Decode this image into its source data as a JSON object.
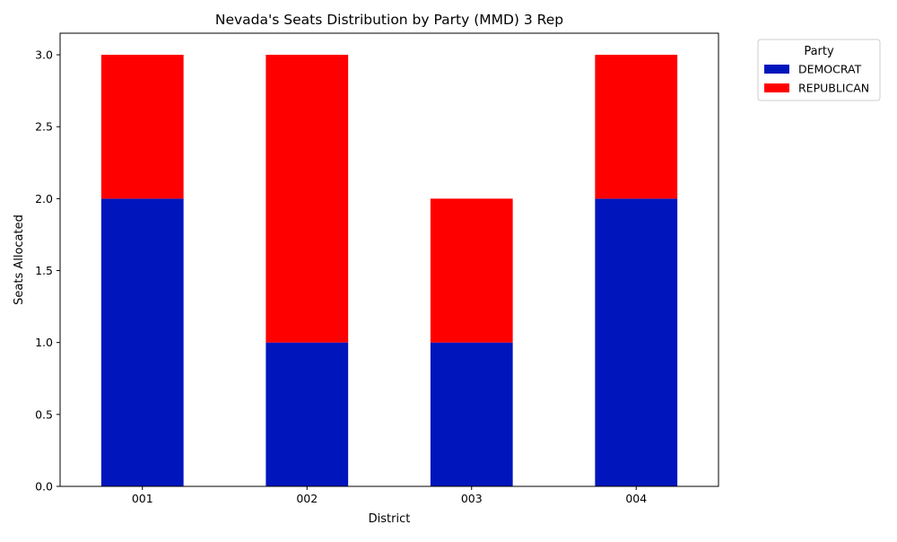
{
  "chart_data": {
    "type": "bar",
    "stacked": true,
    "title": "Nevada's Seats Distribution by Party (MMD) 3 Rep",
    "xlabel": "District",
    "ylabel": "Seats Allocated",
    "categories": [
      "001",
      "002",
      "003",
      "004"
    ],
    "series": [
      {
        "name": "DEMOCRAT",
        "color": "#0015BC",
        "values": [
          2,
          1,
          1,
          2
        ]
      },
      {
        "name": "REPUBLICAN",
        "color": "#FF0000",
        "values": [
          1,
          2,
          1,
          1
        ]
      }
    ],
    "ylim": [
      0,
      3.15
    ],
    "yticks": [
      0.0,
      0.5,
      1.0,
      1.5,
      2.0,
      2.5,
      3.0
    ],
    "ytick_labels": [
      "0.0",
      "0.5",
      "1.0",
      "1.5",
      "2.0",
      "2.5",
      "3.0"
    ],
    "grid": false,
    "legend": {
      "title": "Party",
      "placement": "outside-top-right"
    }
  }
}
